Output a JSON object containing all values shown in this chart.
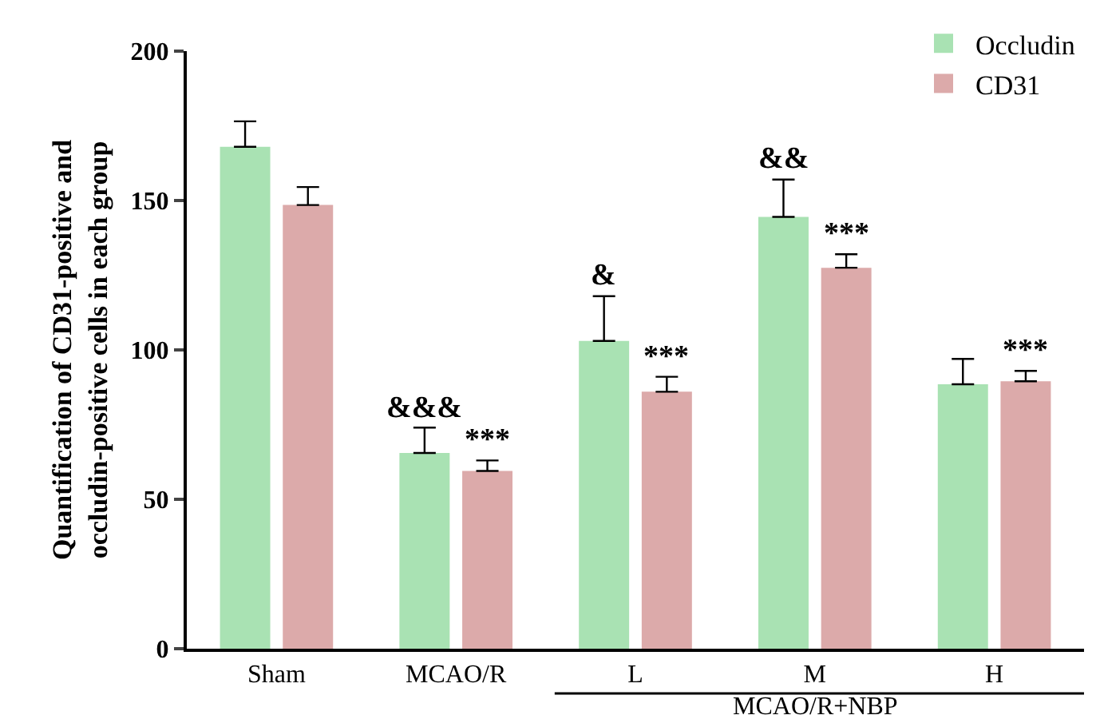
{
  "chart_data": {
    "type": "bar",
    "ylabel": "Quantification of CD31-positive and\noccludin-positive cells in each group",
    "categories": [
      "Sham",
      "MCAO/R",
      "L",
      "M",
      "H"
    ],
    "series": [
      {
        "name": "Occludin",
        "color": "#a9e2b3",
        "values": [
          168,
          65.5,
          103,
          144.5,
          88.5
        ],
        "errors": [
          [
            168,
            176.5
          ],
          [
            65.5,
            74
          ],
          [
            103,
            118
          ],
          [
            144.5,
            157
          ],
          [
            88.5,
            97
          ]
        ]
      },
      {
        "name": "CD31",
        "color": "#dcaaaa",
        "values": [
          148.5,
          59.5,
          86,
          127.5,
          89.5
        ],
        "errors": [
          [
            148.5,
            154.5
          ],
          [
            59.5,
            63
          ],
          [
            86,
            91
          ],
          [
            127.5,
            132
          ],
          [
            89.5,
            93
          ]
        ]
      }
    ],
    "ylim": [
      0,
      200
    ],
    "yticks": [
      0,
      50,
      100,
      150,
      200
    ],
    "grid": false,
    "legend": "top right",
    "annotations": [
      {
        "text": "&&&",
        "x": "MCAO/R",
        "y": 65.5
      },
      {
        "text": "***",
        "x": "MCAO/R",
        "y": 59.5
      },
      {
        "text": "&",
        "x": "L",
        "y": 103
      },
      {
        "text": "***",
        "x": "L",
        "y": 86
      },
      {
        "text": "&&",
        "x": "M",
        "y": 144.5
      },
      {
        "text": "***",
        "x": "M",
        "y": 127.5
      },
      {
        "text": "***",
        "x": "H",
        "y": 89.5
      },
      "MCAO/R+NBP"
    ]
  }
}
